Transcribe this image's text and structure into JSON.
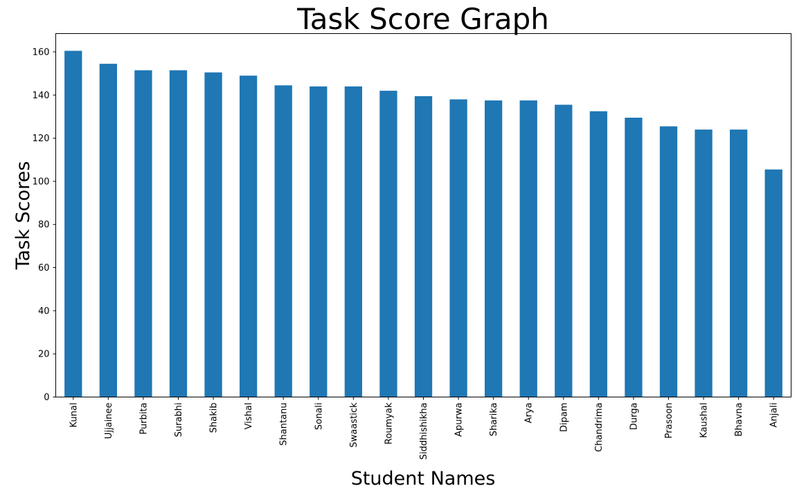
{
  "chart_data": {
    "type": "bar",
    "title": "Task Score Graph",
    "xlabel": "Student Names",
    "ylabel": "Task Scores",
    "categories": [
      "Kunal",
      "Ujjainee",
      "Purbita",
      "Surabhi",
      "Shakib",
      "Vishal",
      "Shantanu",
      "Sonali",
      "Swaastick",
      "Roumyak",
      "Siddhishikha",
      "Apurwa",
      "Sharika",
      "Arya",
      "Dipam",
      "Chandrima",
      "Durga",
      "Prasoon",
      "Kaushal",
      "Bhavna",
      "Anjali"
    ],
    "values": [
      160.5,
      154.5,
      151.5,
      151.5,
      150.5,
      149,
      144.5,
      144,
      144,
      142,
      139.5,
      138,
      137.5,
      137.5,
      135.5,
      132.5,
      129.5,
      125.5,
      124,
      124,
      105.5
    ],
    "ylim": [
      0,
      168.5
    ],
    "yticks": [
      0,
      20,
      40,
      60,
      80,
      100,
      120,
      140,
      160
    ],
    "bar_color": "#1f77b4",
    "grid": false,
    "legend": "none"
  }
}
